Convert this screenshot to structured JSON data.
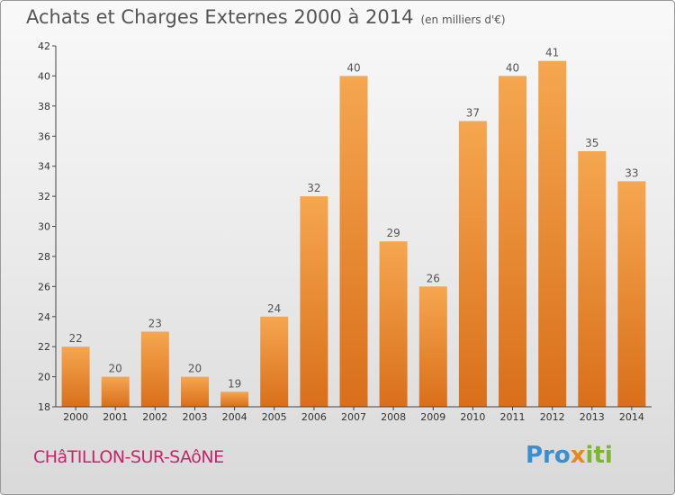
{
  "header": {
    "title": "Achats et Charges Externes 2000 à 2014",
    "unit": "(en milliers d'€)"
  },
  "footer": {
    "commune": "CHâTILLON-SUR-SAôNE"
  },
  "logo": {
    "p1": "Pro",
    "p2": "x",
    "p3": "iti"
  },
  "colors": {
    "bar_top": "#f6a650",
    "bar_bottom": "#d96f1a",
    "text": "#555555",
    "commune": "#c8246a"
  },
  "chart_data": {
    "type": "bar",
    "title": "Achats et Charges Externes 2000 à 2014",
    "subtitle": "(en milliers d'€)",
    "xlabel": "",
    "ylabel": "",
    "categories": [
      "2000",
      "2001",
      "2002",
      "2003",
      "2004",
      "2005",
      "2006",
      "2007",
      "2008",
      "2009",
      "2010",
      "2011",
      "2012",
      "2013",
      "2014"
    ],
    "values": [
      22,
      20,
      23,
      20,
      19,
      24,
      32,
      40,
      29,
      26,
      37,
      40,
      41,
      35,
      33
    ],
    "ylim": [
      18,
      42
    ],
    "yticks": [
      18,
      20,
      22,
      24,
      26,
      28,
      30,
      32,
      34,
      36,
      38,
      40,
      42
    ],
    "grid": false,
    "data_labels": true
  }
}
